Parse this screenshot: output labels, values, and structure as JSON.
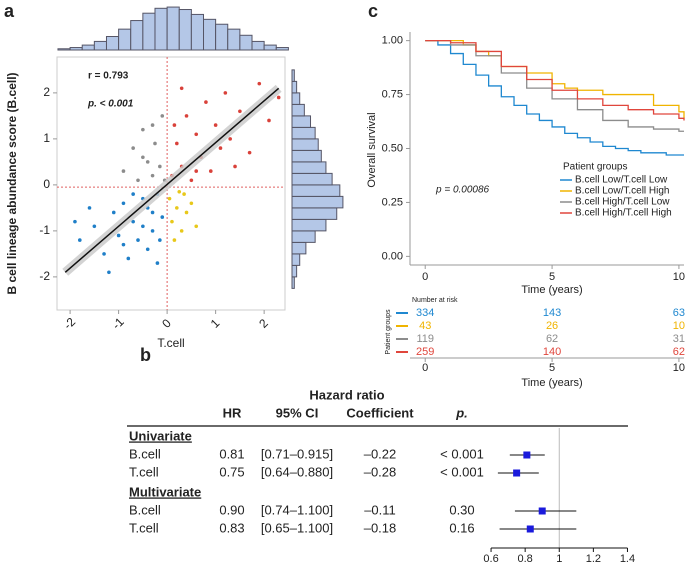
{
  "chart_data": [
    {
      "type": "scatter",
      "panel": "a",
      "xlabel": "T.cell",
      "ylabel": "B cell lineage abundance score (B.cell)",
      "annotations": [
        "r = 0.793",
        "p. < 0.001"
      ],
      "xlim": [
        -2.27,
        2.43
      ],
      "ylim": [
        -2.72,
        2.78
      ],
      "xticks": [
        -2,
        -1,
        0,
        1,
        2
      ],
      "yticks": [
        -2,
        -1,
        0,
        1,
        2
      ],
      "ref_lines": {
        "x": 0,
        "y": -0.05,
        "color": "#e06060"
      },
      "fit_line": {
        "x": [
          -2.1,
          2.3
        ],
        "y": [
          -1.9,
          2.1
        ],
        "color": "#111111",
        "band_color": "#c8c8c8"
      },
      "series": [
        {
          "color": "#1f7fc8",
          "x": [
            -1.8,
            -1.5,
            -1.3,
            -1.1,
            -1.0,
            -0.9,
            -0.8,
            -0.7,
            -0.6,
            -0.5,
            -0.5,
            -0.4,
            -0.3,
            -0.3,
            -0.2,
            -0.2,
            -0.1,
            -1.6,
            -1.2,
            -0.7,
            -1.9,
            -0.9,
            -0.4,
            -0.15
          ],
          "values": [
            -1.2,
            -0.9,
            -1.5,
            -0.6,
            -1.1,
            -0.4,
            -1.6,
            -0.8,
            -1.2,
            -0.3,
            -0.9,
            -1.4,
            -0.6,
            -1.0,
            -0.2,
            -1.7,
            -0.7,
            -0.5,
            -1.9,
            -0.2,
            -0.8,
            -1.3,
            -0.5,
            -1.2
          ]
        },
        {
          "color": "#e8c81a",
          "x": [
            0.05,
            0.1,
            0.2,
            0.3,
            0.35,
            0.4,
            0.15,
            0.5,
            0.25,
            0.6
          ],
          "values": [
            -0.3,
            -0.8,
            -0.5,
            -1.0,
            -0.2,
            -0.6,
            -1.2,
            -0.4,
            -0.15,
            -0.9
          ]
        },
        {
          "color": "#8c8c8c",
          "x": [
            -0.9,
            -0.7,
            -0.6,
            -0.5,
            -0.4,
            -0.3,
            -0.25,
            -0.15,
            -0.1,
            -0.05,
            -0.5,
            -0.3
          ],
          "values": [
            0.3,
            0.8,
            0.1,
            1.2,
            0.5,
            0.2,
            0.9,
            0.4,
            1.5,
            0.1,
            0.6,
            1.3
          ]
        },
        {
          "color": "#d9413a",
          "x": [
            0.1,
            0.2,
            0.3,
            0.4,
            0.5,
            0.6,
            0.7,
            0.8,
            0.9,
            1.0,
            1.1,
            1.2,
            1.3,
            1.5,
            1.7,
            1.9,
            2.1,
            0.3,
            0.6,
            1.4,
            0.15,
            2.3
          ],
          "values": [
            0.2,
            0.9,
            0.4,
            1.5,
            0.1,
            1.1,
            0.6,
            1.8,
            0.3,
            1.3,
            0.8,
            2.0,
            1.0,
            1.6,
            0.7,
            2.2,
            1.4,
            2.1,
            0.3,
            0.4,
            1.3,
            1.9
          ]
        }
      ]
    },
    {
      "type": "histogram",
      "orientation": "vertical",
      "color": "#b4c7e7",
      "bins": [
        -2.25,
        -2,
        -1.75,
        -1.5,
        -1.25,
        -1,
        -0.75,
        -0.5,
        -0.25,
        0,
        0.25,
        0.5,
        0.75,
        1,
        1.25,
        1.5,
        1.75,
        2,
        2.25,
        2.5
      ],
      "values": [
        2,
        4,
        8,
        14,
        22,
        34,
        48,
        60,
        68,
        70,
        66,
        58,
        50,
        42,
        34,
        24,
        14,
        8,
        4
      ],
      "ylim": [
        0,
        75
      ]
    },
    {
      "type": "histogram",
      "orientation": "horizontal",
      "color": "#b4c7e7",
      "bins": [
        -2.25,
        -2,
        -1.75,
        -1.5,
        -1.25,
        -1,
        -0.75,
        -0.5,
        -0.25,
        0,
        0.25,
        0.5,
        0.75,
        1,
        1.25,
        1.5,
        1.75,
        2,
        2.25,
        2.5
      ],
      "values": [
        3,
        6,
        10,
        18,
        30,
        44,
        58,
        66,
        62,
        52,
        44,
        38,
        34,
        30,
        24,
        16,
        10,
        6,
        3
      ],
      "xlim": [
        0,
        70
      ]
    },
    {
      "type": "line",
      "panel": "c",
      "ylabel": "Overall survival",
      "xlabel": "Time (years)",
      "annotations": [
        "p = 0.00086"
      ],
      "legend_title": "Patient groups",
      "xlim": [
        -0.6,
        10.2
      ],
      "ylim": [
        -0.04,
        1.04
      ],
      "xticks": [
        0,
        5,
        10
      ],
      "yticks": [
        {
          "value": 0,
          "label": "0.00"
        },
        {
          "value": 0.25,
          "label": "0.25"
        },
        {
          "value": 0.5,
          "label": "0.50"
        },
        {
          "value": 0.75,
          "label": "0.75"
        },
        {
          "value": 1,
          "label": "1.00"
        }
      ],
      "series": [
        {
          "name": "B.cell Low/T.cell Low",
          "color": "#1f88d0",
          "x": [
            0,
            0.5,
            1,
            1.5,
            2,
            2.5,
            3,
            3.5,
            4,
            4.5,
            5,
            5.5,
            6,
            6.5,
            7,
            7.5,
            8,
            8.5,
            9,
            9.5,
            10,
            10.2
          ],
          "values": [
            1,
            0.98,
            0.94,
            0.89,
            0.84,
            0.79,
            0.74,
            0.7,
            0.66,
            0.63,
            0.6,
            0.57,
            0.55,
            0.53,
            0.51,
            0.5,
            0.49,
            0.48,
            0.48,
            0.47,
            0.47,
            0.47
          ]
        },
        {
          "name": "B.cell Low/T.cell High",
          "color": "#f0b400",
          "x": [
            0,
            1,
            1.5,
            2,
            2.5,
            3,
            4,
            5,
            5.5,
            6,
            7,
            8,
            9,
            10,
            10.2
          ],
          "values": [
            1,
            1,
            0.98,
            0.95,
            0.93,
            0.88,
            0.85,
            0.8,
            0.78,
            0.77,
            0.75,
            0.75,
            0.7,
            0.67,
            0.64
          ]
        },
        {
          "name": "B.cell High/T.cell Low",
          "color": "#8c8c8c",
          "x": [
            0,
            1,
            2,
            3,
            4,
            5,
            6,
            7,
            8,
            9,
            10,
            10.2
          ],
          "values": [
            1,
            0.98,
            0.93,
            0.85,
            0.78,
            0.73,
            0.68,
            0.63,
            0.6,
            0.59,
            0.58,
            0.58
          ]
        },
        {
          "name": "B.cell High/T.cell High",
          "color": "#e0463c",
          "x": [
            0,
            1,
            2,
            3,
            4,
            5,
            6,
            7,
            8,
            9,
            10,
            10.2
          ],
          "values": [
            1,
            0.99,
            0.95,
            0.88,
            0.82,
            0.77,
            0.73,
            0.7,
            0.68,
            0.66,
            0.64,
            0.63
          ]
        }
      ],
      "risk_table": {
        "title": "Number at risk",
        "label": "Patient groups",
        "xlabel": "Time (years)",
        "times": [
          0,
          5,
          10
        ],
        "rows": [
          [
            334,
            143,
            63
          ],
          [
            43,
            26,
            10
          ],
          [
            119,
            62,
            31
          ],
          [
            259,
            140,
            62
          ]
        ]
      }
    },
    {
      "type": "forest",
      "panel": "b",
      "title": "Hazard ratio",
      "headers": [
        "HR",
        "95% CI",
        "Coefficient",
        "p."
      ],
      "xlim": [
        0.5,
        1.45
      ],
      "xticks": [
        0.6,
        0.8,
        1,
        1.2,
        1.4
      ],
      "ref": 1,
      "color": "#1a1adc",
      "sections": [
        {
          "name": "Univariate",
          "rows": [
            {
              "name": "B.cell",
              "hr": 0.81,
              "hr_label": "0.81",
              "ci_low": 0.71,
              "ci_high": 0.915,
              "ci_label": "[0.71–0.915]",
              "coefficient": "–0.22",
              "p": "< 0.001"
            },
            {
              "name": "T.cell",
              "hr": 0.75,
              "hr_label": "0.75",
              "ci_low": 0.64,
              "ci_high": 0.88,
              "ci_label": "[0.64–0.880]",
              "coefficient": "–0.28",
              "p": "< 0.001"
            }
          ]
        },
        {
          "name": "Multivariate",
          "rows": [
            {
              "name": "B.cell",
              "hr": 0.9,
              "hr_label": "0.90",
              "ci_low": 0.74,
              "ci_high": 1.1,
              "ci_label": "[0.74–1.100]",
              "coefficient": "–0.11",
              "p": "0.30"
            },
            {
              "name": "T.cell",
              "hr": 0.83,
              "hr_label": "0.83",
              "ci_low": 0.65,
              "ci_high": 1.1,
              "ci_label": "[0.65–1.100]",
              "coefficient": "–0.18",
              "p": "0.16"
            }
          ]
        }
      ]
    }
  ]
}
